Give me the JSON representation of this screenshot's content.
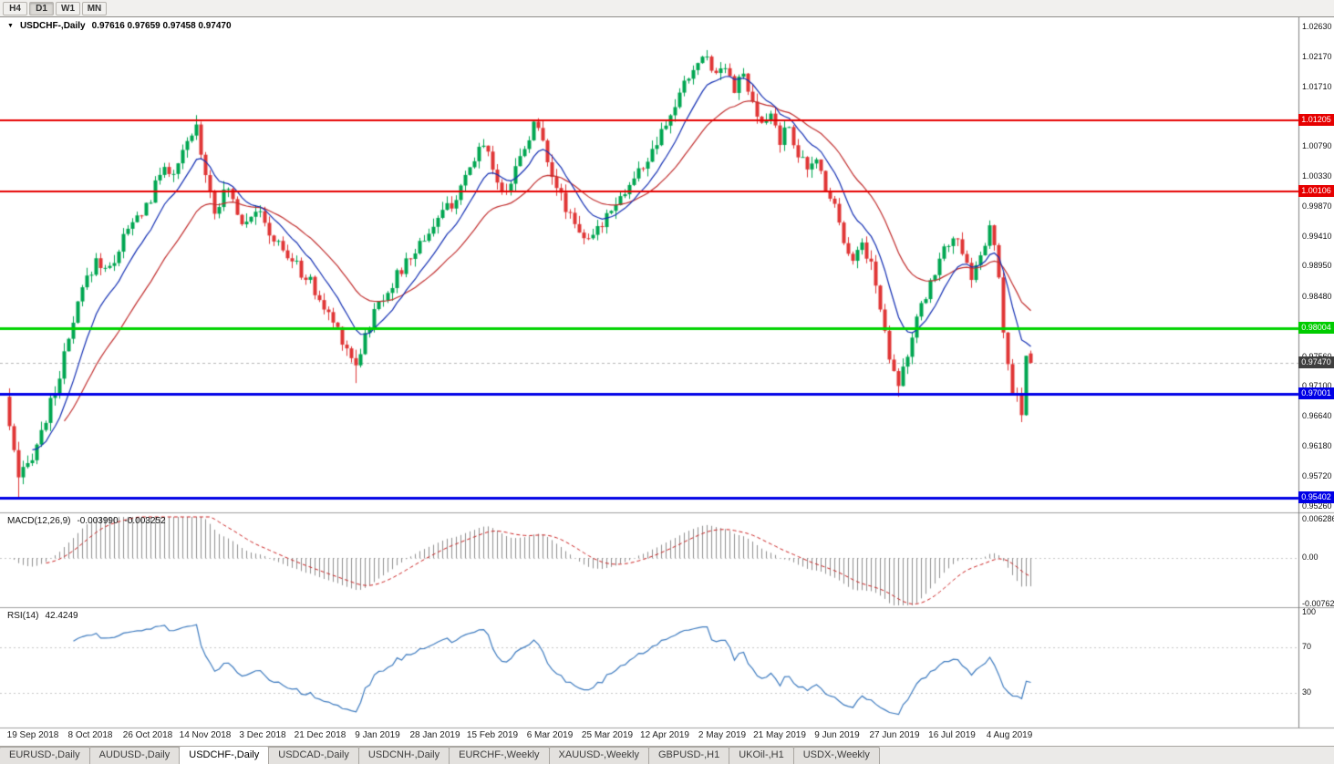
{
  "colors": {
    "up": "#00a651",
    "down": "#e03636",
    "ma_fast": "#1430b4",
    "ma_slow": "#c22f2f",
    "macd_hist": "#8f8f8f",
    "macd_signal": "#cc2222",
    "rsi_line": "#3f7cc0",
    "grid": "#c8c8c8",
    "separator": "#a0a0a0",
    "bid_line": "#b8b8b8"
  },
  "toolbar": {
    "timeframes": [
      {
        "label": "H4",
        "active": false
      },
      {
        "label": "D1",
        "active": true
      },
      {
        "label": "W1",
        "active": false
      },
      {
        "label": "MN",
        "active": false
      }
    ]
  },
  "chart_header": {
    "collapse_icon": "▼",
    "symbol_label": "USDCHF-,Daily",
    "ohlc": "0.97616 0.97659 0.97458 0.97470"
  },
  "price_axis": {
    "ticks": [
      {
        "label": "1.02630",
        "price": 1.0263
      },
      {
        "label": "1.02170",
        "price": 1.0217
      },
      {
        "label": "1.01710",
        "price": 1.0171
      },
      {
        "label": "1.00790",
        "price": 1.0079
      },
      {
        "label": "1.00330",
        "price": 1.0033
      },
      {
        "label": "0.99870",
        "price": 0.9987
      },
      {
        "label": "0.99410",
        "price": 0.9941
      },
      {
        "label": "0.98950",
        "price": 0.9895
      },
      {
        "label": "0.98480",
        "price": 0.9848
      },
      {
        "label": "0.97560",
        "price": 0.9756
      },
      {
        "label": "0.97100",
        "price": 0.971
      },
      {
        "label": "0.96640",
        "price": 0.9664
      },
      {
        "label": "0.96180",
        "price": 0.9618
      },
      {
        "label": "0.95720",
        "price": 0.9572
      },
      {
        "label": "0.95260",
        "price": 0.9526
      }
    ],
    "badges": [
      {
        "label": "1.01205",
        "price": 1.01205,
        "bg": "#e60000"
      },
      {
        "label": "1.00106",
        "price": 1.00106,
        "bg": "#e60000"
      },
      {
        "label": "0.98004",
        "price": 0.98004,
        "bg": "#00cc00"
      },
      {
        "label": "0.97470",
        "price": 0.9747,
        "bg": "#3f3f3f"
      },
      {
        "label": "0.97001",
        "price": 0.97001,
        "bg": "#0000e6"
      },
      {
        "label": "0.95402",
        "price": 0.95402,
        "bg": "#0000e6"
      }
    ]
  },
  "panels": {
    "macd": {
      "name_label": "MACD(12,26,9)",
      "main_value": "-0.003990",
      "signal_value": "-0.003252",
      "axis_ticks": [
        {
          "label": "0.006286",
          "value": 0.006286
        },
        {
          "label": "0.00",
          "value": 0
        },
        {
          "label": "-0.00762",
          "value": -0.00762
        }
      ]
    },
    "rsi": {
      "name_label": "RSI(14)",
      "value": "42.4249",
      "axis_ticks": [
        {
          "label": "100",
          "value": 100
        },
        {
          "label": "70",
          "value": 70
        },
        {
          "label": "30",
          "value": 30
        }
      ],
      "levels": [
        70,
        30
      ]
    }
  },
  "date_axis": [
    "19 Sep 2018",
    "8 Oct 2018",
    "26 Oct 2018",
    "14 Nov 2018",
    "3 Dec 2018",
    "21 Dec 2018",
    "9 Jan 2019",
    "28 Jan 2019",
    "15 Feb 2019",
    "6 Mar 2019",
    "25 Mar 2019",
    "12 Apr 2019",
    "2 May 2019",
    "21 May 2019",
    "9 Jun 2019",
    "27 Jun 2019",
    "16 Jul 2019",
    "4 Aug 2019"
  ],
  "tabs": [
    {
      "label": "EURUSD-,Daily",
      "active": false
    },
    {
      "label": "AUDUSD-,Daily",
      "active": false
    },
    {
      "label": "USDCHF-,Daily",
      "active": true
    },
    {
      "label": "USDCAD-,Daily",
      "active": false
    },
    {
      "label": "USDCNH-,Daily",
      "active": false
    },
    {
      "label": "EURCHF-,Weekly",
      "active": false
    },
    {
      "label": "XAUUSD-,Weekly",
      "active": false
    },
    {
      "label": "GBPUSD-,H1",
      "active": false
    },
    {
      "label": "UKOil-,H1",
      "active": false
    },
    {
      "label": "USDX-,Weekly",
      "active": false
    }
  ],
  "chart_data": {
    "type": "candlestick",
    "symbol": "USDCHF",
    "timeframe": "Daily",
    "y_range": [
      0.952,
      1.027
    ],
    "last_ohlc": {
      "open": 0.97616,
      "high": 0.97659,
      "low": 0.97458,
      "close": 0.9747
    },
    "candle_count": 225,
    "horizontal_levels": [
      {
        "price": 1.01205,
        "color": "#e60000",
        "width": 2
      },
      {
        "price": 1.00106,
        "color": "#e60000",
        "width": 2
      },
      {
        "price": 0.98004,
        "color": "#00d300",
        "width": 3
      },
      {
        "price": 0.97001,
        "color": "#0000e6",
        "width": 3
      },
      {
        "price": 0.95402,
        "color": "#0000e6",
        "width": 3
      }
    ],
    "price_anchors": [
      [
        0,
        0.965
      ],
      [
        2,
        0.9565
      ],
      [
        4,
        0.959
      ],
      [
        7,
        0.964
      ],
      [
        10,
        0.9705
      ],
      [
        13,
        0.978
      ],
      [
        16,
        0.986
      ],
      [
        19,
        0.9905
      ],
      [
        22,
        0.989
      ],
      [
        25,
        0.994
      ],
      [
        28,
        0.997
      ],
      [
        31,
        1.0
      ],
      [
        34,
        1.0055
      ],
      [
        36,
        1.003
      ],
      [
        39,
        1.0085
      ],
      [
        41,
        1.011
      ],
      [
        43,
        1.004
      ],
      [
        45,
        0.9985
      ],
      [
        48,
        1.0015
      ],
      [
        51,
        0.9965
      ],
      [
        54,
        0.9985
      ],
      [
        57,
        0.9945
      ],
      [
        60,
        0.992
      ],
      [
        63,
        0.9895
      ],
      [
        66,
        0.987
      ],
      [
        69,
        0.983
      ],
      [
        72,
        0.98
      ],
      [
        74,
        0.977
      ],
      [
        76,
        0.9745
      ],
      [
        78,
        0.979
      ],
      [
        81,
        0.984
      ],
      [
        84,
        0.987
      ],
      [
        87,
        0.99
      ],
      [
        90,
        0.993
      ],
      [
        93,
        0.996
      ],
      [
        96,
        0.9985
      ],
      [
        99,
        1.001
      ],
      [
        102,
        1.006
      ],
      [
        104,
        1.009
      ],
      [
        106,
        1.005
      ],
      [
        108,
        1.0005
      ],
      [
        110,
        1.003
      ],
      [
        113,
        1.008
      ],
      [
        115,
        1.0115
      ],
      [
        117,
        1.009
      ],
      [
        119,
        1.004
      ],
      [
        121,
        1.0
      ],
      [
        124,
        0.9965
      ],
      [
        127,
        0.993
      ],
      [
        129,
        0.995
      ],
      [
        132,
        0.999
      ],
      [
        135,
        1.001
      ],
      [
        138,
        1.004
      ],
      [
        141,
        1.007
      ],
      [
        144,
        1.011
      ],
      [
        147,
        1.016
      ],
      [
        150,
        1.02
      ],
      [
        153,
        1.022
      ],
      [
        155,
        1.019
      ],
      [
        157,
        1.021
      ],
      [
        159,
        1.017
      ],
      [
        161,
        1.019
      ],
      [
        163,
        1.014
      ],
      [
        165,
        1.011
      ],
      [
        167,
        1.013
      ],
      [
        169,
        1.009
      ],
      [
        171,
        1.011
      ],
      [
        173,
        1.007
      ],
      [
        175,
        1.004
      ],
      [
        177,
        1.006
      ],
      [
        179,
        1.002
      ],
      [
        181,
        0.999
      ],
      [
        183,
        0.994
      ],
      [
        185,
        0.9905
      ],
      [
        187,
        0.993
      ],
      [
        189,
        0.99
      ],
      [
        191,
        0.983
      ],
      [
        193,
        0.976
      ],
      [
        195,
        0.972
      ],
      [
        197,
        0.976
      ],
      [
        199,
        0.981
      ],
      [
        201,
        0.985
      ],
      [
        203,
        0.989
      ],
      [
        205,
        0.992
      ],
      [
        207,
        0.9945
      ],
      [
        209,
        0.991
      ],
      [
        211,
        0.988
      ],
      [
        213,
        0.991
      ],
      [
        215,
        0.995
      ],
      [
        216,
        0.993
      ],
      [
        217,
        0.987
      ],
      [
        218,
        0.98
      ],
      [
        219,
        0.974
      ],
      [
        220,
        0.97
      ],
      [
        221,
        0.969
      ],
      [
        222,
        0.966
      ],
      [
        223,
        0.9762
      ],
      [
        224,
        0.9747
      ]
    ],
    "wick_overrides": [
      {
        "i": 2,
        "low": 0.954
      },
      {
        "i": 41,
        "high": 1.0128
      },
      {
        "i": 76,
        "low": 0.9716
      },
      {
        "i": 153,
        "high": 1.0228
      },
      {
        "i": 195,
        "low": 0.9695
      },
      {
        "i": 222,
        "low": 0.9656
      }
    ],
    "moving_averages": [
      {
        "period": 10,
        "color": "#1430b4"
      },
      {
        "period": 25,
        "color": "#c22f2f"
      }
    ],
    "indicators": [
      {
        "name": "MACD",
        "params": [
          12,
          26,
          9
        ],
        "last_main": -0.00399,
        "last_signal": -0.003252
      },
      {
        "name": "RSI",
        "params": [
          14
        ],
        "last": 42.4249
      }
    ]
  }
}
